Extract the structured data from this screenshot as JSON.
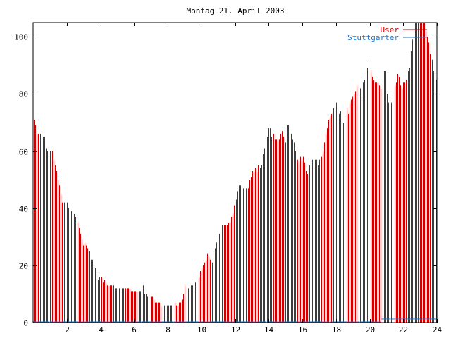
{
  "chart_data": {
    "type": "bar",
    "title": "Montag 21. April 2003",
    "xlabel": "",
    "ylabel": "",
    "xlim": [
      0,
      24
    ],
    "ylim": [
      0,
      105
    ],
    "x_ticks": [
      2,
      4,
      6,
      8,
      10,
      12,
      14,
      16,
      18,
      20,
      22,
      24
    ],
    "y_ticks": [
      0,
      20,
      40,
      60,
      80,
      100
    ],
    "legend_position": "top-right",
    "grid": false,
    "series": [
      {
        "name": "User",
        "color": "#cc0000",
        "values": [
          71,
          69,
          66,
          66,
          66,
          66,
          65,
          65,
          61,
          60,
          59,
          60,
          60,
          57,
          55,
          53,
          50,
          48,
          45,
          42,
          42,
          42,
          42,
          40,
          40,
          39,
          38,
          38,
          37,
          35,
          33,
          31,
          29,
          27,
          28,
          27,
          26,
          25,
          22,
          22,
          20,
          19,
          17,
          15,
          16,
          16,
          14,
          15,
          14,
          13,
          13,
          13,
          13,
          13,
          12,
          12,
          11,
          12,
          12,
          12,
          12,
          12,
          12,
          12,
          12,
          11,
          11,
          11,
          11,
          11,
          11,
          11,
          11,
          13,
          10,
          10,
          9,
          9,
          9,
          9,
          8,
          7,
          7,
          7,
          7,
          6,
          6,
          6,
          6,
          6,
          6,
          6,
          6,
          7,
          7,
          6,
          6,
          7,
          7,
          8,
          10,
          13,
          13,
          12,
          13,
          13,
          13,
          12,
          14,
          15,
          16,
          18,
          19,
          20,
          21,
          22,
          24,
          23,
          22,
          21,
          25,
          26,
          28,
          30,
          31,
          32,
          34,
          34,
          34,
          34,
          35,
          35,
          37,
          38,
          41,
          43,
          46,
          48,
          48,
          48,
          47,
          46,
          47,
          47,
          50,
          51,
          53,
          53,
          54,
          53,
          55,
          54,
          55,
          59,
          61,
          64,
          65,
          68,
          68,
          65,
          66,
          64,
          64,
          64,
          64,
          66,
          67,
          65,
          63,
          69,
          69,
          69,
          66,
          64,
          63,
          60,
          57,
          56,
          58,
          57,
          58,
          56,
          53,
          52,
          55,
          56,
          57,
          54,
          57,
          57,
          55,
          57,
          58,
          60,
          63,
          66,
          68,
          71,
          72,
          73,
          75,
          76,
          77,
          74,
          73,
          74,
          71,
          70,
          72,
          75,
          73,
          77,
          78,
          79,
          80,
          81,
          83,
          82,
          82,
          78,
          84,
          85,
          86,
          89,
          92,
          88,
          86,
          85,
          84,
          84,
          84,
          83,
          82,
          80,
          88,
          88,
          80,
          77,
          78,
          77,
          81,
          83,
          84,
          87,
          86,
          83,
          82,
          84,
          84,
          85,
          88,
          89,
          95,
          99,
          102,
          105,
          105,
          105,
          105,
          105,
          105,
          105,
          102,
          100,
          98,
          94,
          92,
          88,
          86,
          85
        ]
      },
      {
        "name": "Stuttgarter",
        "color": "#1e74c8",
        "values": [
          0,
          0,
          0,
          0,
          0,
          0,
          0,
          0,
          0,
          0,
          0,
          0,
          0,
          0,
          0,
          0,
          0,
          0,
          0,
          0,
          0,
          0,
          0,
          0,
          0,
          0,
          0,
          0,
          0,
          0,
          0,
          0,
          0,
          0,
          0,
          0,
          0,
          0,
          0,
          0,
          0,
          0,
          0,
          0,
          0,
          0,
          0,
          0,
          0,
          0,
          0,
          0,
          0,
          0,
          0,
          0,
          0,
          0,
          0,
          0,
          0,
          0,
          0,
          0,
          0,
          0,
          0,
          0,
          0,
          0,
          0,
          0,
          0,
          0,
          0,
          0,
          0,
          0,
          0,
          0,
          0,
          0,
          0,
          0,
          0,
          0,
          0,
          0,
          0,
          0,
          0,
          0,
          0,
          0,
          0,
          0,
          0,
          0,
          0,
          0,
          0,
          0,
          0,
          0,
          0,
          0,
          0,
          0,
          0,
          0,
          0,
          0,
          0,
          0,
          0,
          0,
          0,
          0,
          0,
          0,
          0,
          0,
          0,
          0,
          0,
          0,
          0,
          0,
          0,
          0,
          0,
          0,
          0,
          0,
          0,
          0,
          0,
          0,
          0,
          0,
          0,
          0,
          0,
          0,
          0,
          0,
          0,
          0,
          0,
          0,
          0,
          0,
          0,
          0,
          0,
          0,
          0,
          0,
          0,
          0,
          0,
          0,
          0,
          0,
          0,
          0,
          0,
          0,
          0,
          0,
          0,
          0,
          0,
          0,
          0,
          0,
          0,
          0,
          0,
          0,
          0,
          0,
          0,
          0,
          0,
          0,
          0,
          0,
          0,
          0,
          0,
          0,
          0,
          0,
          0,
          0,
          0,
          0,
          0,
          0,
          0,
          0,
          0,
          0,
          0,
          0,
          0,
          0,
          0,
          0,
          0,
          0,
          0,
          0,
          0,
          0,
          0,
          0,
          0,
          0,
          0,
          0,
          0,
          0,
          0,
          0,
          0,
          0,
          0,
          0,
          0,
          0,
          0,
          0,
          0,
          0,
          0,
          0,
          0,
          0,
          0,
          1,
          1,
          1,
          1,
          1,
          1,
          1,
          1,
          1,
          1,
          1,
          1,
          1,
          1,
          1,
          1,
          1,
          1,
          1,
          1,
          1,
          1,
          1,
          1,
          1,
          1,
          1,
          1,
          1,
          1,
          1,
          1,
          1,
          1,
          1,
          1,
          1,
          1,
          1
        ]
      }
    ]
  }
}
